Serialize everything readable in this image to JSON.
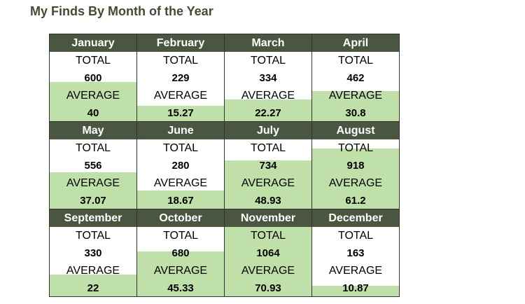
{
  "title": "My Finds By Month of the Year",
  "labels": {
    "total": "TOTAL",
    "average": "AVERAGE"
  },
  "colors": {
    "header_bg": "#4b5640",
    "fill": "#bfe0a8",
    "title": "#3f4d35"
  },
  "max_total": 1064,
  "months": [
    {
      "name": "January",
      "total": "600",
      "average": "40"
    },
    {
      "name": "February",
      "total": "229",
      "average": "15.27"
    },
    {
      "name": "March",
      "total": "334",
      "average": "22.27"
    },
    {
      "name": "April",
      "total": "462",
      "average": "30.8"
    },
    {
      "name": "May",
      "total": "556",
      "average": "37.07"
    },
    {
      "name": "June",
      "total": "280",
      "average": "18.67"
    },
    {
      "name": "July",
      "total": "734",
      "average": "48.93"
    },
    {
      "name": "August",
      "total": "918",
      "average": "61.2"
    },
    {
      "name": "September",
      "total": "330",
      "average": "22"
    },
    {
      "name": "October",
      "total": "680",
      "average": "45.33"
    },
    {
      "name": "November",
      "total": "1064",
      "average": "70.93"
    },
    {
      "name": "December",
      "total": "163",
      "average": "10.87"
    }
  ]
}
